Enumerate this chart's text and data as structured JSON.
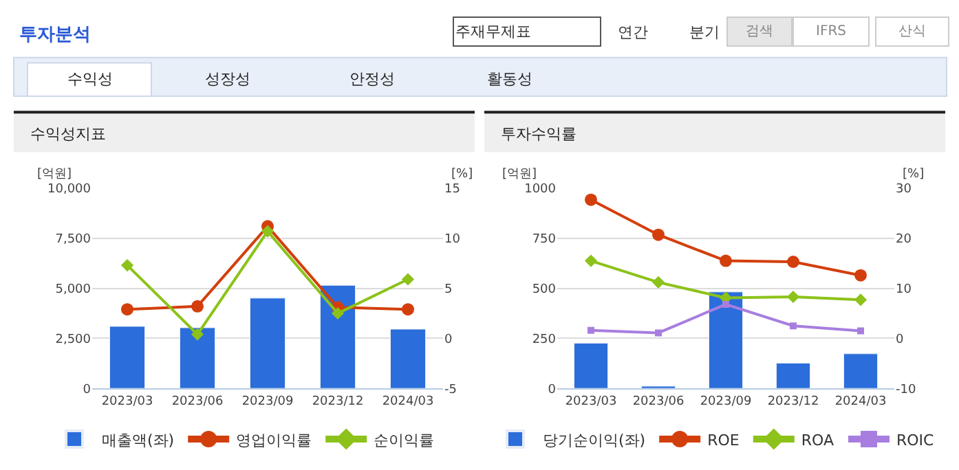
{
  "chart_data": [
    {
      "type": "other",
      "title": "투자분석",
      "annotations": [
        "주재무제표",
        "연간",
        "분기",
        "검색",
        "IFRS",
        "산식",
        "수익성",
        "성장성",
        "안정성",
        "활동성"
      ]
    },
    {
      "type": "bar",
      "title": "수익성지표",
      "ylabel": "[억원]",
      "y2label": "[%]",
      "categories": [
        "2023/03",
        "2023/06",
        "2023/09",
        "2023/12",
        "2024/03"
      ],
      "series": [
        {
          "name": "매출액(좌)",
          "type": "bar",
          "color": "#2b6ddb",
          "values": [
            3100,
            3030,
            4510,
            5150,
            2960
          ]
        },
        {
          "name": "영업이익률",
          "type": "line",
          "axis": "y2",
          "marker": "circle",
          "color": "#d33f0c",
          "values": [
            2.9,
            3.2,
            11.2,
            3.1,
            2.9
          ]
        },
        {
          "name": "순이익률",
          "type": "line",
          "axis": "y2",
          "marker": "diamond",
          "color": "#8cc21a",
          "values": [
            7.3,
            0.4,
            10.7,
            2.5,
            5.9
          ]
        }
      ],
      "ylim": [
        0,
        10000
      ],
      "yticks": [
        0,
        {
          "value": 2500,
          "label": "2,500"
        },
        {
          "value": 5000,
          "label": "5,000"
        },
        {
          "value": 7500,
          "label": "7,500"
        },
        {
          "value": 10000,
          "label": "10,000"
        }
      ],
      "y2lim": [
        -5,
        15
      ],
      "y2ticks": [
        -5,
        0,
        5,
        10,
        15
      ],
      "grid": "y",
      "legend": "bottom"
    },
    {
      "type": "bar",
      "title": "투자수익률",
      "ylabel": "[억원]",
      "y2label": "[%]",
      "categories": [
        "2023/03",
        "2023/06",
        "2023/09",
        "2023/12",
        "2024/03"
      ],
      "series": [
        {
          "name": "당기순이익(좌)",
          "type": "bar",
          "color": "#2b6ddb",
          "values": [
            226,
            11,
            482,
            126,
            173
          ]
        },
        {
          "name": "ROE",
          "type": "line",
          "axis": "y2",
          "marker": "circle",
          "color": "#d33f0c",
          "values": [
            27.7,
            20.7,
            15.5,
            15.3,
            12.6
          ]
        },
        {
          "name": "ROA",
          "type": "line",
          "axis": "y2",
          "marker": "diamond",
          "color": "#8cc21a",
          "values": [
            15.5,
            11.2,
            8.1,
            8.3,
            7.7
          ]
        },
        {
          "name": "ROIC",
          "type": "line",
          "axis": "y2",
          "marker": "square",
          "color": "#a77ee0",
          "values": [
            1.6,
            1.1,
            6.8,
            2.5,
            1.5
          ]
        }
      ],
      "ylim": [
        0,
        1000
      ],
      "yticks": [
        0,
        250,
        500,
        750,
        1000
      ],
      "y2lim": [
        -10,
        30
      ],
      "y2ticks": [
        -10,
        0,
        10,
        20,
        30
      ],
      "grid": "y",
      "legend": "bottom"
    }
  ]
}
